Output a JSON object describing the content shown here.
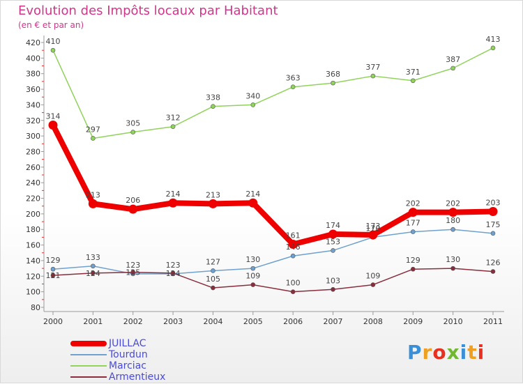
{
  "chart_data": {
    "type": "line",
    "title": "Evolution des Impôts locaux par Habitant",
    "subtitle": "(en € et par an)",
    "xlabel": "",
    "ylabel": "",
    "x": [
      "2000",
      "2001",
      "2002",
      "2003",
      "2004",
      "2005",
      "2006",
      "2007",
      "2008",
      "2009",
      "2010",
      "2011"
    ],
    "ylim": [
      80,
      420
    ],
    "yticks": [
      80,
      100,
      120,
      140,
      160,
      180,
      200,
      220,
      240,
      260,
      280,
      300,
      320,
      340,
      360,
      380,
      400,
      420
    ],
    "series": [
      {
        "name": "JUILLAC",
        "color": "#ee0000",
        "values": [
          314,
          213,
          206,
          214,
          213,
          214,
          161,
          174,
          173,
          202,
          202,
          203
        ]
      },
      {
        "name": "Tourdun",
        "color": "#6ea1cf",
        "values": [
          129,
          133,
          123,
          123,
          127,
          130,
          146,
          153,
          170,
          177,
          180,
          175
        ]
      },
      {
        "name": "Marciac",
        "color": "#8fd35a",
        "values": [
          410,
          297,
          305,
          312,
          338,
          340,
          363,
          368,
          377,
          371,
          387,
          413
        ]
      },
      {
        "name": "Armentieux",
        "color": "#8b2c3c",
        "values": [
          121,
          124,
          125,
          124,
          105,
          109,
          100,
          103,
          109,
          129,
          130,
          126
        ]
      }
    ],
    "legend_position": "bottom-left",
    "grid": false
  },
  "brand": {
    "letters": [
      {
        "ch": "P",
        "color": "#3a8fd8"
      },
      {
        "ch": "r",
        "color": "#f0a020"
      },
      {
        "ch": "o",
        "color": "#e83020"
      },
      {
        "ch": "x",
        "color": "#70b830"
      },
      {
        "ch": "i",
        "color": "#3a8fd8"
      },
      {
        "ch": "t",
        "color": "#f0a020"
      },
      {
        "ch": "i",
        "color": "#e83020"
      }
    ]
  }
}
